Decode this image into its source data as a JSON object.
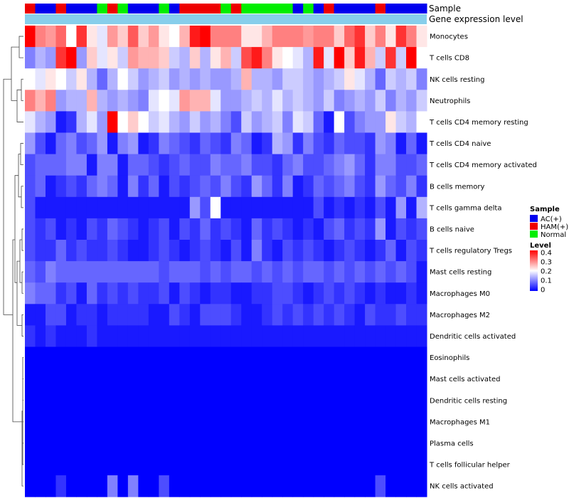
{
  "chart_data": {
    "type": "heatmap",
    "annotation_labels": {
      "sample": "Sample",
      "gene_expression": "Gene expression level"
    },
    "gene_expression_color": "#87ceeb",
    "sample_groups": [
      "HAM(+)",
      "AC(+)",
      "AC(+)",
      "HAM(+)",
      "AC(+)",
      "AC(+)",
      "AC(+)",
      "Normal",
      "HAM(+)",
      "Normal",
      "AC(+)",
      "AC(+)",
      "AC(+)",
      "Normal",
      "AC(+)",
      "HAM(+)",
      "HAM(+)",
      "HAM(+)",
      "HAM(+)",
      "Normal",
      "HAM(+)",
      "Normal",
      "Normal",
      "Normal",
      "Normal",
      "Normal",
      "AC(+)",
      "Normal",
      "AC(+)",
      "HAM(+)",
      "AC(+)",
      "AC(+)",
      "AC(+)",
      "AC(+)",
      "HAM(+)",
      "AC(+)",
      "AC(+)",
      "AC(+)",
      "AC(+)"
    ],
    "rows": [
      {
        "name": "Monocytes",
        "values": [
          0.4,
          0.3,
          0.28,
          0.32,
          0.2,
          0.36,
          0.22,
          0.18,
          0.28,
          0.24,
          0.33,
          0.24,
          0.28,
          0.22,
          0.2,
          0.26,
          0.38,
          0.4,
          0.3,
          0.3,
          0.3,
          0.22,
          0.22,
          0.26,
          0.3,
          0.3,
          0.3,
          0.28,
          0.3,
          0.3,
          0.24,
          0.32,
          0.36,
          0.24,
          0.3,
          0.22,
          0.36,
          0.3,
          0.22
        ]
      },
      {
        "name": "T cells CD8",
        "values": [
          0.1,
          0.14,
          0.12,
          0.36,
          0.42,
          0.12,
          0.24,
          0.18,
          0.22,
          0.16,
          0.28,
          0.26,
          0.26,
          0.24,
          0.16,
          0.14,
          0.24,
          0.14,
          0.22,
          0.26,
          0.16,
          0.34,
          0.38,
          0.3,
          0.22,
          0.2,
          0.18,
          0.14,
          0.38,
          0.18,
          0.4,
          0.24,
          0.38,
          0.26,
          0.16,
          0.36,
          0.16,
          0.4,
          0.2
        ]
      },
      {
        "name": "NK cells resting",
        "values": [
          0.2,
          0.18,
          0.22,
          0.2,
          0.16,
          0.22,
          0.14,
          0.08,
          0.14,
          0.2,
          0.16,
          0.12,
          0.14,
          0.16,
          0.12,
          0.14,
          0.12,
          0.14,
          0.12,
          0.12,
          0.14,
          0.26,
          0.14,
          0.14,
          0.12,
          0.16,
          0.16,
          0.14,
          0.12,
          0.14,
          0.16,
          0.22,
          0.18,
          0.14,
          0.08,
          0.16,
          0.14,
          0.16,
          0.1
        ]
      },
      {
        "name": "Neutrophils",
        "values": [
          0.3,
          0.26,
          0.3,
          0.12,
          0.14,
          0.14,
          0.26,
          0.14,
          0.12,
          0.14,
          0.12,
          0.1,
          0.18,
          0.2,
          0.18,
          0.28,
          0.26,
          0.26,
          0.18,
          0.12,
          0.12,
          0.14,
          0.16,
          0.14,
          0.18,
          0.14,
          0.16,
          0.14,
          0.12,
          0.16,
          0.1,
          0.12,
          0.14,
          0.12,
          0.16,
          0.1,
          0.14,
          0.12,
          0.16
        ]
      },
      {
        "name": "T cells CD4 memory resting",
        "values": [
          0.18,
          0.14,
          0.12,
          0.02,
          0.04,
          0.14,
          0.18,
          0.12,
          0.42,
          0.2,
          0.24,
          0.2,
          0.16,
          0.18,
          0.14,
          0.12,
          0.16,
          0.12,
          0.14,
          0.1,
          0.06,
          0.16,
          0.12,
          0.14,
          0.16,
          0.1,
          0.18,
          0.16,
          0.08,
          0.02,
          0.2,
          0.06,
          0.1,
          0.12,
          0.12,
          0.22,
          0.16,
          0.14,
          0.2
        ]
      },
      {
        "name": "T cells CD4 naive",
        "values": [
          0.12,
          0.06,
          0.02,
          0.08,
          0.1,
          0.06,
          0.08,
          0.12,
          0.02,
          0.1,
          0.12,
          0.02,
          0.04,
          0.1,
          0.08,
          0.06,
          0.04,
          0.08,
          0.06,
          0.04,
          0.1,
          0.08,
          0.02,
          0.04,
          0.14,
          0.12,
          0.04,
          0.1,
          0.06,
          0.04,
          0.08,
          0.06,
          0.06,
          0.04,
          0.12,
          0.1,
          0.02,
          0.08,
          0.02
        ]
      },
      {
        "name": "T cells CD4 memory activated",
        "values": [
          0.06,
          0.08,
          0.08,
          0.08,
          0.1,
          0.1,
          0.02,
          0.1,
          0.1,
          0.02,
          0.08,
          0.08,
          0.06,
          0.04,
          0.06,
          0.08,
          0.06,
          0.06,
          0.1,
          0.08,
          0.08,
          0.1,
          0.06,
          0.06,
          0.04,
          0.08,
          0.1,
          0.06,
          0.06,
          0.08,
          0.1,
          0.12,
          0.08,
          0.04,
          0.1,
          0.1,
          0.06,
          0.06,
          0.08
        ]
      },
      {
        "name": "B cells memory",
        "values": [
          0.06,
          0.08,
          0.02,
          0.04,
          0.06,
          0.04,
          0.08,
          0.1,
          0.08,
          0.02,
          0.1,
          0.04,
          0.08,
          0.02,
          0.06,
          0.04,
          0.06,
          0.08,
          0.06,
          0.1,
          0.06,
          0.04,
          0.12,
          0.08,
          0.04,
          0.1,
          0.02,
          0.04,
          0.08,
          0.06,
          0.08,
          0.1,
          0.06,
          0.04,
          0.12,
          0.08,
          0.06,
          0.1,
          0.04
        ]
      },
      {
        "name": "T cells gamma delta",
        "values": [
          0.06,
          0.02,
          0.02,
          0.02,
          0.02,
          0.02,
          0.02,
          0.02,
          0.02,
          0.02,
          0.02,
          0.02,
          0.02,
          0.02,
          0.02,
          0.02,
          0.12,
          0.06,
          0.2,
          0.02,
          0.02,
          0.02,
          0.02,
          0.02,
          0.02,
          0.02,
          0.02,
          0.02,
          0.06,
          0.02,
          0.04,
          0.02,
          0.04,
          0.02,
          0.06,
          0.02,
          0.12,
          0.02,
          0.14
        ]
      },
      {
        "name": "B cells naive",
        "values": [
          0.06,
          0.04,
          0.06,
          0.02,
          0.04,
          0.02,
          0.06,
          0.04,
          0.08,
          0.06,
          0.04,
          0.02,
          0.04,
          0.06,
          0.02,
          0.06,
          0.04,
          0.08,
          0.04,
          0.06,
          0.04,
          0.02,
          0.08,
          0.04,
          0.06,
          0.04,
          0.02,
          0.04,
          0.02,
          0.06,
          0.08,
          0.04,
          0.06,
          0.04,
          0.12,
          0.02,
          0.06,
          0.04,
          0.06
        ]
      },
      {
        "name": "T cells regulatory  Tregs",
        "values": [
          0.06,
          0.04,
          0.04,
          0.08,
          0.04,
          0.06,
          0.04,
          0.04,
          0.06,
          0.04,
          0.02,
          0.02,
          0.04,
          0.06,
          0.04,
          0.02,
          0.04,
          0.06,
          0.04,
          0.02,
          0.06,
          0.02,
          0.1,
          0.04,
          0.02,
          0.06,
          0.04,
          0.06,
          0.04,
          0.02,
          0.04,
          0.06,
          0.04,
          0.02,
          0.04,
          0.08,
          0.02,
          0.06,
          0.04
        ]
      },
      {
        "name": "Mast cells resting",
        "values": [
          0.08,
          0.06,
          0.1,
          0.08,
          0.08,
          0.08,
          0.08,
          0.08,
          0.08,
          0.08,
          0.08,
          0.08,
          0.08,
          0.06,
          0.08,
          0.08,
          0.08,
          0.06,
          0.08,
          0.06,
          0.08,
          0.08,
          0.06,
          0.08,
          0.06,
          0.08,
          0.06,
          0.08,
          0.08,
          0.06,
          0.08,
          0.06,
          0.08,
          0.06,
          0.08,
          0.06,
          0.08,
          0.06,
          0.02
        ]
      },
      {
        "name": "Macrophages M0",
        "values": [
          0.1,
          0.08,
          0.08,
          0.04,
          0.06,
          0.02,
          0.08,
          0.04,
          0.06,
          0.04,
          0.06,
          0.04,
          0.04,
          0.06,
          0.02,
          0.06,
          0.04,
          0.02,
          0.04,
          0.04,
          0.02,
          0.02,
          0.04,
          0.04,
          0.06,
          0.06,
          0.04,
          0.02,
          0.04,
          0.06,
          0.04,
          0.06,
          0.04,
          0.02,
          0.04,
          0.02,
          0.02,
          0.04,
          0.02
        ]
      },
      {
        "name": "Macrophages M2",
        "values": [
          0.02,
          0.02,
          0.06,
          0.06,
          0.02,
          0.04,
          0.04,
          0.02,
          0.04,
          0.04,
          0.04,
          0.04,
          0.02,
          0.02,
          0.06,
          0.04,
          0.02,
          0.06,
          0.06,
          0.06,
          0.04,
          0.02,
          0.02,
          0.04,
          0.06,
          0.04,
          0.06,
          0.04,
          0.06,
          0.04,
          0.06,
          0.04,
          0.02,
          0.06,
          0.04,
          0.04,
          0.06,
          0.04,
          0.04
        ]
      },
      {
        "name": "Dendritic cells activated",
        "values": [
          0.04,
          0.02,
          0.04,
          0.02,
          0.02,
          0.02,
          0.04,
          0.02,
          0.02,
          0.02,
          0.02,
          0.02,
          0.02,
          0.02,
          0.02,
          0.02,
          0.02,
          0.02,
          0.02,
          0.02,
          0.02,
          0.02,
          0.02,
          0.02,
          0.02,
          0.02,
          0.02,
          0.02,
          0.02,
          0.02,
          0.02,
          0.02,
          0.02,
          0.02,
          0.02,
          0.02,
          0.02,
          0.02,
          0.02
        ]
      },
      {
        "name": "Eosinophils",
        "values": [
          0,
          0,
          0,
          0,
          0,
          0,
          0,
          0,
          0,
          0,
          0,
          0,
          0,
          0,
          0,
          0,
          0,
          0,
          0,
          0,
          0,
          0,
          0,
          0,
          0,
          0,
          0,
          0,
          0,
          0,
          0,
          0,
          0,
          0,
          0,
          0,
          0,
          0,
          0
        ]
      },
      {
        "name": "Mast cells activated",
        "values": [
          0,
          0,
          0,
          0,
          0,
          0,
          0,
          0,
          0,
          0,
          0,
          0,
          0,
          0,
          0,
          0,
          0,
          0,
          0,
          0,
          0,
          0,
          0,
          0,
          0,
          0,
          0,
          0,
          0,
          0,
          0,
          0,
          0,
          0,
          0,
          0,
          0,
          0,
          0
        ]
      },
      {
        "name": "Dendritic cells resting",
        "values": [
          0,
          0,
          0,
          0,
          0,
          0,
          0,
          0,
          0,
          0,
          0,
          0,
          0,
          0,
          0,
          0,
          0,
          0,
          0,
          0,
          0,
          0,
          0,
          0,
          0,
          0,
          0,
          0,
          0,
          0,
          0,
          0,
          0,
          0,
          0,
          0,
          0,
          0,
          0
        ]
      },
      {
        "name": "Macrophages M1",
        "values": [
          0,
          0,
          0,
          0,
          0,
          0,
          0,
          0,
          0,
          0,
          0,
          0,
          0,
          0,
          0,
          0,
          0,
          0,
          0,
          0,
          0,
          0,
          0,
          0,
          0,
          0,
          0,
          0,
          0,
          0,
          0,
          0,
          0,
          0,
          0,
          0,
          0,
          0,
          0
        ]
      },
      {
        "name": "Plasma cells",
        "values": [
          0,
          0,
          0,
          0,
          0,
          0,
          0,
          0,
          0,
          0,
          0,
          0,
          0,
          0,
          0,
          0,
          0,
          0,
          0,
          0,
          0,
          0,
          0,
          0,
          0,
          0,
          0,
          0,
          0,
          0,
          0,
          0,
          0,
          0,
          0,
          0,
          0,
          0,
          0
        ]
      },
      {
        "name": "T cells follicular helper",
        "values": [
          0,
          0,
          0,
          0,
          0,
          0,
          0,
          0,
          0,
          0,
          0,
          0,
          0,
          0,
          0,
          0,
          0,
          0,
          0,
          0,
          0,
          0,
          0,
          0,
          0,
          0,
          0,
          0,
          0,
          0,
          0,
          0,
          0,
          0,
          0,
          0,
          0,
          0,
          0
        ]
      },
      {
        "name": "NK cells activated",
        "values": [
          0,
          0,
          0,
          0.04,
          0,
          0,
          0,
          0,
          0.1,
          0,
          0.1,
          0,
          0,
          0.06,
          0,
          0,
          0,
          0,
          0,
          0,
          0,
          0,
          0,
          0,
          0,
          0,
          0,
          0,
          0,
          0,
          0,
          0,
          0,
          0,
          0.06,
          0,
          0,
          0,
          0
        ]
      }
    ],
    "legend": {
      "sample_title": "Sample",
      "sample_entries": [
        {
          "label": "AC(+)",
          "color": "#0000ee"
        },
        {
          "label": "HAM(+)",
          "color": "#ee0000"
        },
        {
          "label": "Normal",
          "color": "#00ee00"
        }
      ],
      "level_title": "Level",
      "level_ticks": [
        "0.4",
        "0.3",
        "0.2",
        "0.1",
        "0"
      ],
      "level_range": [
        0,
        0.4
      ],
      "level_colors": {
        "low": "#0000ff",
        "mid": "#ffffff",
        "high": "#ff0000"
      }
    }
  }
}
